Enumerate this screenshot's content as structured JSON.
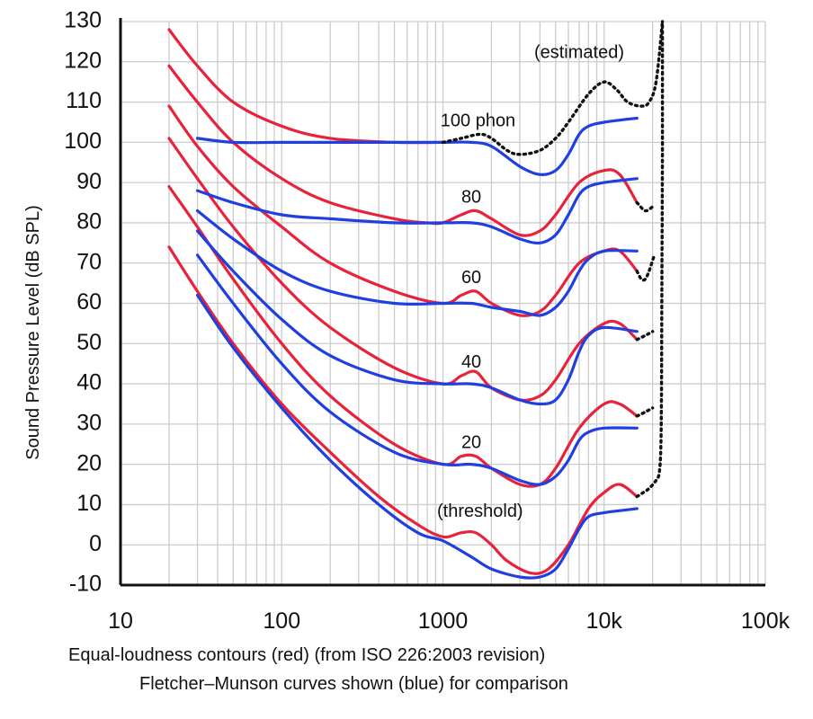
{
  "chart_data": {
    "type": "line",
    "xscale": "log",
    "xlim": [
      10,
      100000
    ],
    "ylim": [
      -10,
      130
    ],
    "ylabel": "Sound Pressure Level (dB SPL)",
    "xtick_values": [
      10,
      100,
      1000,
      10000,
      100000
    ],
    "xtick_labels": [
      "10",
      "100",
      "1000",
      "10k",
      "100k"
    ],
    "ytick_values": [
      130,
      120,
      110,
      100,
      90,
      80,
      70,
      60,
      50,
      40,
      30,
      20,
      10,
      0,
      -10
    ],
    "ytick_labels": [
      "130",
      "120",
      "110",
      "100",
      "90",
      "80",
      "70",
      "60",
      "50",
      "40",
      "30",
      "20",
      "10",
      "0",
      "-10"
    ],
    "grid": true,
    "colors": {
      "iso": "#e8223a",
      "fm": "#1f3fe0",
      "estimated": "#111111",
      "grid": "#cccccc"
    },
    "annotations": [
      {
        "text": "(estimated)",
        "x": 7000,
        "y": 121
      },
      {
        "text": "100 phon",
        "x": 1650,
        "y": 104
      },
      {
        "text": "80",
        "x": 1500,
        "y": 85
      },
      {
        "text": "60",
        "x": 1500,
        "y": 65
      },
      {
        "text": "40",
        "x": 1500,
        "y": 44
      },
      {
        "text": "20",
        "x": 1500,
        "y": 24
      },
      {
        "text": "(threshold)",
        "x": 1700,
        "y": 7
      }
    ],
    "series": [
      {
        "group": "iso",
        "points": [
          [
            20,
            128
          ],
          [
            30,
            119
          ],
          [
            50,
            110
          ],
          [
            100,
            104
          ],
          [
            200,
            101
          ],
          [
            500,
            100
          ],
          [
            1000,
            100
          ]
        ]
      },
      {
        "group": "iso",
        "points": [
          [
            20,
            119
          ],
          [
            30,
            110
          ],
          [
            50,
            100
          ],
          [
            100,
            91
          ],
          [
            200,
            85
          ],
          [
            500,
            81
          ],
          [
            800,
            80
          ],
          [
            1000,
            80
          ],
          [
            1300,
            82
          ],
          [
            1600,
            83
          ],
          [
            2000,
            81
          ],
          [
            3000,
            77
          ],
          [
            4000,
            78
          ],
          [
            5000,
            82
          ],
          [
            7000,
            90
          ],
          [
            10000,
            93
          ],
          [
            12500,
            92
          ],
          [
            16000,
            85
          ]
        ]
      },
      {
        "group": "iso",
        "points": [
          [
            20,
            109
          ],
          [
            30,
            99
          ],
          [
            50,
            89
          ],
          [
            100,
            79
          ],
          [
            200,
            70
          ],
          [
            500,
            63
          ],
          [
            1000,
            60
          ],
          [
            1300,
            62
          ],
          [
            1600,
            63
          ],
          [
            2000,
            60
          ],
          [
            3000,
            57
          ],
          [
            4000,
            58
          ],
          [
            5000,
            62
          ],
          [
            7000,
            70
          ],
          [
            10000,
            73
          ],
          [
            12500,
            73
          ],
          [
            16000,
            68
          ]
        ]
      },
      {
        "group": "iso",
        "points": [
          [
            20,
            101
          ],
          [
            30,
            91
          ],
          [
            50,
            79
          ],
          [
            100,
            65
          ],
          [
            200,
            54
          ],
          [
            500,
            44
          ],
          [
            1000,
            40
          ],
          [
            1300,
            42
          ],
          [
            1600,
            43
          ],
          [
            2000,
            39
          ],
          [
            3000,
            36
          ],
          [
            4000,
            37
          ],
          [
            5000,
            41
          ],
          [
            7000,
            50
          ],
          [
            10000,
            55
          ],
          [
            12500,
            55
          ],
          [
            16000,
            51
          ]
        ]
      },
      {
        "group": "iso",
        "points": [
          [
            20,
            89
          ],
          [
            30,
            79
          ],
          [
            50,
            66
          ],
          [
            100,
            50
          ],
          [
            200,
            37
          ],
          [
            500,
            25
          ],
          [
            1000,
            20
          ],
          [
            1300,
            22
          ],
          [
            1600,
            22
          ],
          [
            2000,
            19
          ],
          [
            3000,
            15
          ],
          [
            4000,
            15
          ],
          [
            5000,
            19
          ],
          [
            7000,
            29
          ],
          [
            10000,
            35
          ],
          [
            12500,
            35
          ],
          [
            16000,
            32
          ]
        ]
      },
      {
        "group": "iso",
        "points": [
          [
            20,
            74
          ],
          [
            30,
            63
          ],
          [
            50,
            50
          ],
          [
            100,
            35
          ],
          [
            200,
            23
          ],
          [
            400,
            12
          ],
          [
            700,
            5
          ],
          [
            1000,
            2
          ],
          [
            1300,
            3
          ],
          [
            1600,
            3
          ],
          [
            2000,
            0
          ],
          [
            2500,
            -4
          ],
          [
            3500,
            -7
          ],
          [
            4500,
            -6
          ],
          [
            6000,
            0
          ],
          [
            8000,
            9
          ],
          [
            10000,
            13
          ],
          [
            12500,
            15
          ],
          [
            16000,
            12
          ]
        ]
      },
      {
        "group": "fm",
        "points": [
          [
            30,
            101
          ],
          [
            50,
            100
          ],
          [
            100,
            100
          ],
          [
            200,
            100
          ],
          [
            500,
            100
          ],
          [
            1000,
            100
          ],
          [
            1500,
            100
          ],
          [
            2000,
            99
          ],
          [
            3000,
            94
          ],
          [
            4000,
            92
          ],
          [
            5000,
            93
          ],
          [
            6000,
            97
          ],
          [
            7000,
            102
          ],
          [
            8000,
            104
          ],
          [
            10000,
            105
          ],
          [
            16000,
            106
          ]
        ]
      },
      {
        "group": "fm",
        "points": [
          [
            30,
            88
          ],
          [
            50,
            85
          ],
          [
            100,
            82
          ],
          [
            200,
            81
          ],
          [
            500,
            80
          ],
          [
            1000,
            80
          ],
          [
            1500,
            80
          ],
          [
            2000,
            79
          ],
          [
            3000,
            76
          ],
          [
            4000,
            75
          ],
          [
            5000,
            77
          ],
          [
            6000,
            82
          ],
          [
            7000,
            87
          ],
          [
            8000,
            89
          ],
          [
            10000,
            90
          ],
          [
            16000,
            91
          ]
        ]
      },
      {
        "group": "fm",
        "points": [
          [
            30,
            83
          ],
          [
            50,
            76
          ],
          [
            100,
            68
          ],
          [
            200,
            63
          ],
          [
            500,
            60
          ],
          [
            1000,
            60
          ],
          [
            1500,
            60
          ],
          [
            2000,
            59
          ],
          [
            3000,
            58
          ],
          [
            4000,
            57
          ],
          [
            5000,
            59
          ],
          [
            6000,
            63
          ],
          [
            7000,
            68
          ],
          [
            8000,
            71
          ],
          [
            10000,
            73
          ],
          [
            16000,
            73
          ]
        ]
      },
      {
        "group": "fm",
        "points": [
          [
            30,
            78
          ],
          [
            50,
            68
          ],
          [
            100,
            56
          ],
          [
            200,
            47
          ],
          [
            500,
            41
          ],
          [
            1000,
            40
          ],
          [
            1500,
            40
          ],
          [
            2000,
            39
          ],
          [
            3000,
            36
          ],
          [
            4000,
            35
          ],
          [
            5000,
            36
          ],
          [
            6000,
            41
          ],
          [
            7000,
            48
          ],
          [
            8000,
            52
          ],
          [
            10000,
            54
          ],
          [
            16000,
            53
          ]
        ]
      },
      {
        "group": "fm",
        "points": [
          [
            30,
            72
          ],
          [
            50,
            60
          ],
          [
            100,
            45
          ],
          [
            200,
            33
          ],
          [
            500,
            23
          ],
          [
            1000,
            20
          ],
          [
            1500,
            20
          ],
          [
            2000,
            19
          ],
          [
            3000,
            16
          ],
          [
            4000,
            15
          ],
          [
            5000,
            17
          ],
          [
            6000,
            21
          ],
          [
            7000,
            26
          ],
          [
            8000,
            28
          ],
          [
            10000,
            29
          ],
          [
            16000,
            29
          ]
        ]
      },
      {
        "group": "fm",
        "points": [
          [
            30,
            62
          ],
          [
            50,
            49
          ],
          [
            100,
            34
          ],
          [
            200,
            21
          ],
          [
            400,
            10
          ],
          [
            700,
            3
          ],
          [
            1000,
            1
          ],
          [
            1500,
            -3
          ],
          [
            2000,
            -6
          ],
          [
            3000,
            -8
          ],
          [
            4000,
            -8
          ],
          [
            5000,
            -6
          ],
          [
            6000,
            -1
          ],
          [
            7000,
            4
          ],
          [
            8000,
            7
          ],
          [
            10000,
            8
          ],
          [
            16000,
            9
          ]
        ]
      },
      {
        "group": "estimated",
        "points": [
          [
            1000,
            100
          ],
          [
            1300,
            101
          ],
          [
            1700,
            102
          ],
          [
            2000,
            101
          ],
          [
            2500,
            98
          ],
          [
            3000,
            97
          ],
          [
            4000,
            98
          ],
          [
            5000,
            101
          ],
          [
            6000,
            105
          ],
          [
            8000,
            112
          ],
          [
            10000,
            115
          ],
          [
            12000,
            113
          ],
          [
            14000,
            110
          ],
          [
            17000,
            109
          ],
          [
            19000,
            110
          ],
          [
            21000,
            115
          ],
          [
            23000,
            130
          ]
        ]
      },
      {
        "group": "estimated",
        "points": [
          [
            16000,
            85
          ],
          [
            18000,
            83
          ],
          [
            20000,
            84
          ]
        ]
      },
      {
        "group": "estimated",
        "points": [
          [
            16000,
            68
          ],
          [
            17000,
            66
          ],
          [
            18000,
            66
          ],
          [
            19000,
            68
          ],
          [
            20500,
            72
          ]
        ]
      },
      {
        "group": "estimated",
        "points": [
          [
            16000,
            51
          ],
          [
            18000,
            52
          ],
          [
            20000,
            53
          ]
        ]
      },
      {
        "group": "estimated",
        "points": [
          [
            16000,
            32
          ],
          [
            18000,
            33
          ],
          [
            20000,
            34
          ]
        ]
      },
      {
        "group": "estimated",
        "points": [
          [
            16000,
            12
          ],
          [
            17500,
            13
          ],
          [
            19000,
            14
          ],
          [
            21000,
            16
          ],
          [
            22000,
            18
          ],
          [
            22500,
            25
          ],
          [
            22700,
            40
          ],
          [
            22800,
            60
          ],
          [
            22900,
            80
          ],
          [
            23000,
            100
          ],
          [
            23000,
            130
          ]
        ]
      }
    ]
  },
  "captions": {
    "line1": "Equal-loudness contours (red) (from ISO 226:2003 revision)",
    "line2": "Fletcher–Munson curves shown (blue) for comparison"
  }
}
